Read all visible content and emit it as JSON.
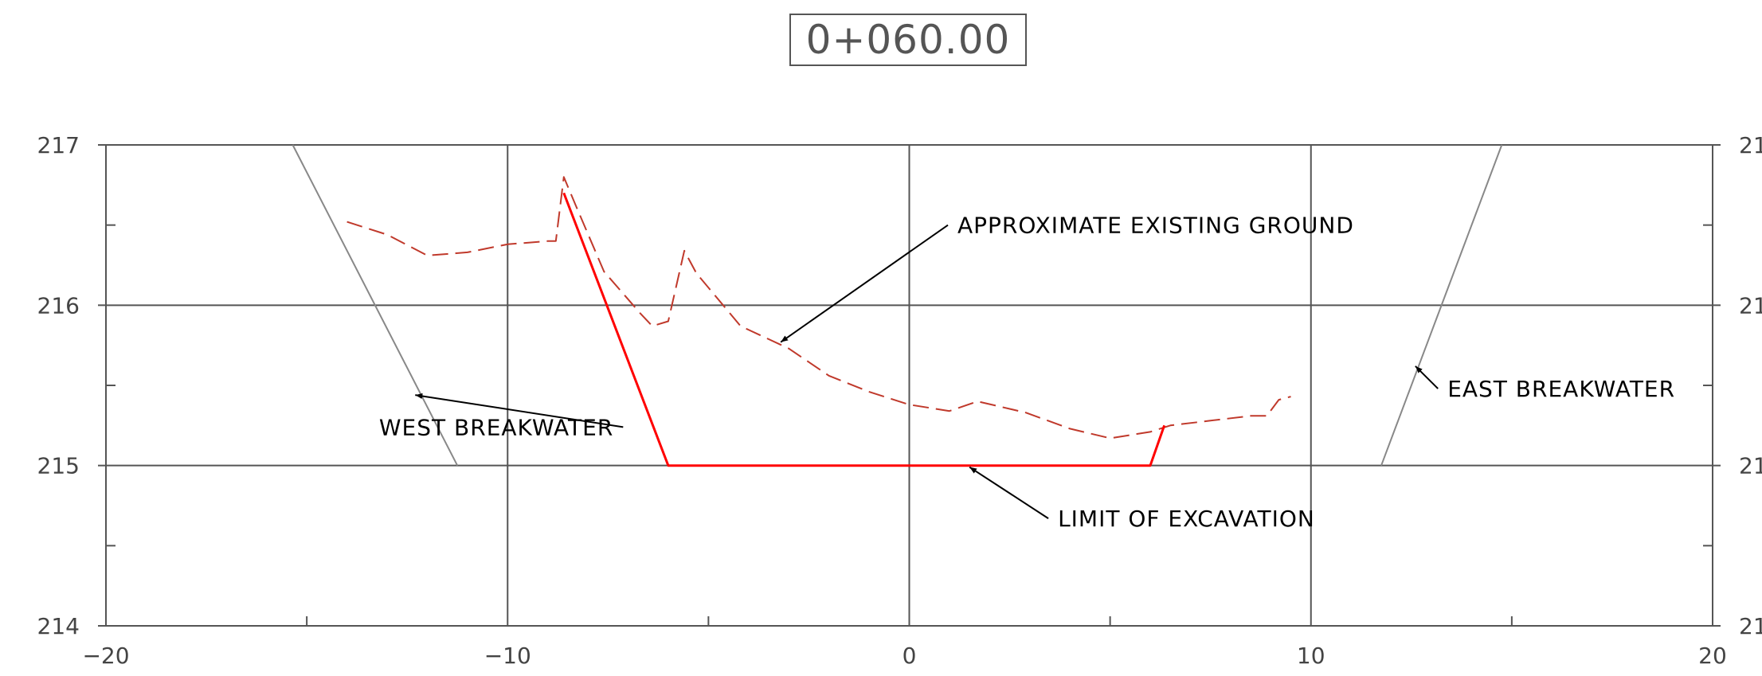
{
  "chart_data": {
    "type": "line",
    "title": "0+060.00",
    "xlim": [
      -20,
      20
    ],
    "ylim": [
      214,
      217
    ],
    "x_ticks": [
      "−20",
      "−10",
      "0",
      "10",
      "20"
    ],
    "y_ticks_left": [
      "214",
      "215",
      "216",
      "217"
    ],
    "y_ticks_right": [
      "21",
      "21",
      "21",
      "21"
    ],
    "grid": true,
    "series": [
      {
        "name": "APPROXIMATE EXISTING GROUND",
        "style": "dashed",
        "color": "#c0392b",
        "x": [
          -14.0,
          -13.0,
          -12.0,
          -11.0,
          -10.0,
          -9.0,
          -8.8,
          -8.6,
          -8.3,
          -7.6,
          -6.7,
          -6.4,
          -6.0,
          -5.6,
          -5.3,
          -4.2,
          -3.0,
          -2.0,
          -1.0,
          0.0,
          1.0,
          1.7,
          2.9,
          4.0,
          5.0,
          6.0,
          6.5,
          7.5,
          8.5,
          8.9,
          9.2,
          9.5
        ],
        "y": [
          216.52,
          216.44,
          216.31,
          216.33,
          216.38,
          216.4,
          216.4,
          216.8,
          216.62,
          216.21,
          215.95,
          215.87,
          215.9,
          216.34,
          216.2,
          215.87,
          215.73,
          215.56,
          215.46,
          215.38,
          215.34,
          215.4,
          215.33,
          215.23,
          215.17,
          215.21,
          215.25,
          215.28,
          215.31,
          215.31,
          215.41,
          215.43
        ]
      },
      {
        "name": "LIMIT OF EXCAVATION",
        "style": "solid",
        "color": "#ff0000",
        "x": [
          -8.6,
          -6.0,
          6.0,
          6.35
        ],
        "y": [
          216.7,
          215.0,
          215.0,
          215.25
        ]
      },
      {
        "name": "WEST BREAKWATER",
        "style": "solid",
        "color": "#888888",
        "x": [
          -15.35,
          -11.25
        ],
        "y": [
          217.0,
          215.0
        ]
      },
      {
        "name": "EAST BREAKWATER",
        "style": "solid",
        "color": "#888888",
        "x": [
          11.75,
          14.75
        ],
        "y": [
          215.0,
          217.0
        ]
      }
    ],
    "annotations": [
      {
        "text": "APPROXIMATE EXISTING GROUND",
        "arrow_to": [
          -3.2,
          215.77
        ],
        "label_at": [
          1.2,
          216.5
        ]
      },
      {
        "text": "WEST BREAKWATER",
        "arrow_to": [
          -12.3,
          215.44
        ],
        "label_at": [
          -13.2,
          215.24
        ]
      },
      {
        "text": "EAST BREAKWATER",
        "arrow_to": [
          12.6,
          215.62
        ],
        "label_at": [
          13.4,
          215.48
        ]
      },
      {
        "text": "LIMIT OF EXCAVATION",
        "arrow_to": [
          1.5,
          214.99
        ],
        "label_at": [
          3.7,
          214.67
        ]
      }
    ]
  }
}
